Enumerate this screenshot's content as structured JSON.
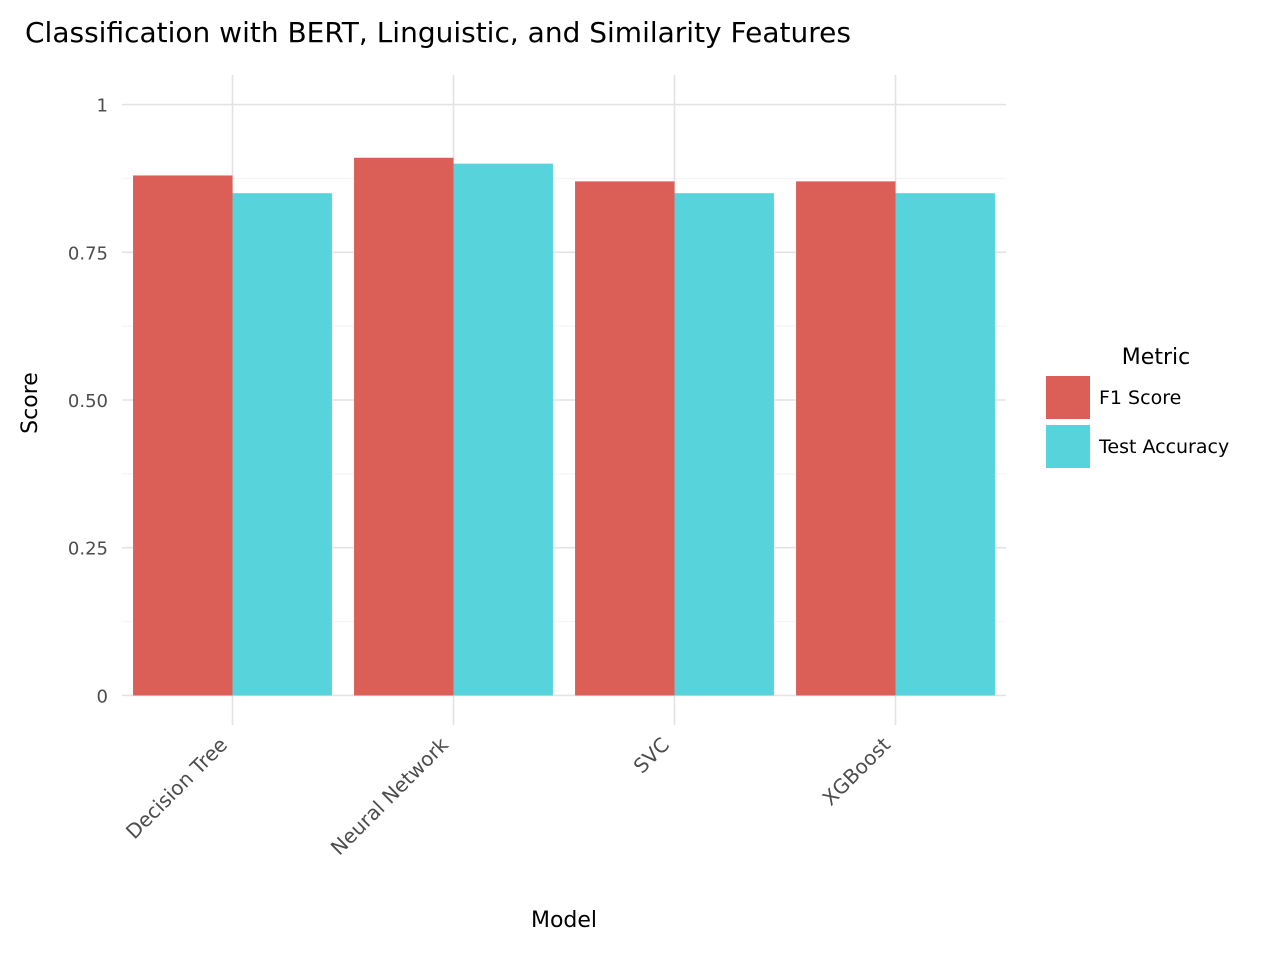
{
  "chart_data": {
    "type": "bar",
    "title": "Classification with BERT, Linguistic, and Similarity Features",
    "xlabel": "Model",
    "ylabel": "Score",
    "categories": [
      "Decision Tree",
      "Neural Network",
      "SVC",
      "XGBoost"
    ],
    "series": [
      {
        "name": "F1 Score",
        "color": "#db5f57",
        "values": [
          0.88,
          0.91,
          0.87,
          0.87
        ]
      },
      {
        "name": "Test Accuracy",
        "color": "#57d3db",
        "values": [
          0.85,
          0.9,
          0.85,
          0.85
        ]
      }
    ],
    "ylim": [
      -0.05,
      1.05
    ],
    "yticks": [
      0,
      0.25,
      0.5,
      0.75,
      1
    ],
    "ytick_labels": [
      "0",
      "0.25",
      "0.50",
      "0.75",
      "1"
    ],
    "grid": true,
    "legend": {
      "title": "Metric",
      "position": "right"
    }
  }
}
